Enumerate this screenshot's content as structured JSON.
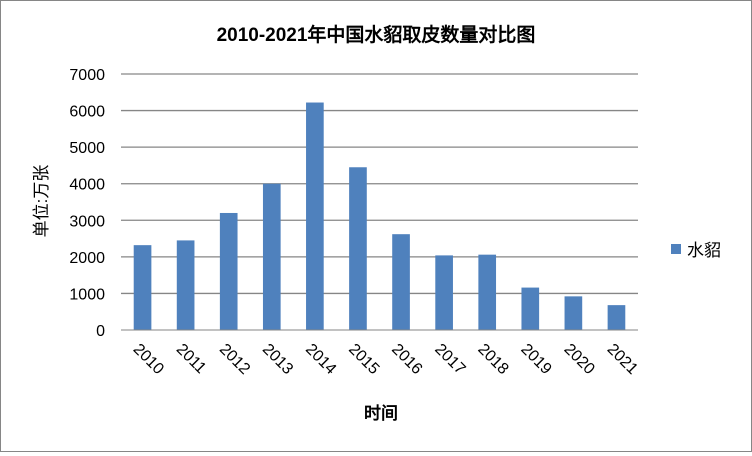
{
  "chart_data": {
    "type": "bar",
    "title": "2010-2021年中国水貂取皮数量对比图",
    "xlabel": "时间",
    "ylabel": "单位:万张",
    "categories": [
      "2010",
      "2011",
      "2012",
      "2013",
      "2014",
      "2015",
      "2016",
      "2017",
      "2018",
      "2019",
      "2020",
      "2021"
    ],
    "series": [
      {
        "name": "水貂",
        "values": [
          2320,
          2450,
          3200,
          4000,
          6220,
          4450,
          2620,
          2040,
          2060,
          1160,
          920,
          680
        ],
        "color": "#4F81BD"
      }
    ],
    "ylim": [
      0,
      7000
    ],
    "yticks": [
      0,
      1000,
      2000,
      3000,
      4000,
      5000,
      6000,
      7000
    ],
    "grid": true,
    "legend_position": "right"
  }
}
